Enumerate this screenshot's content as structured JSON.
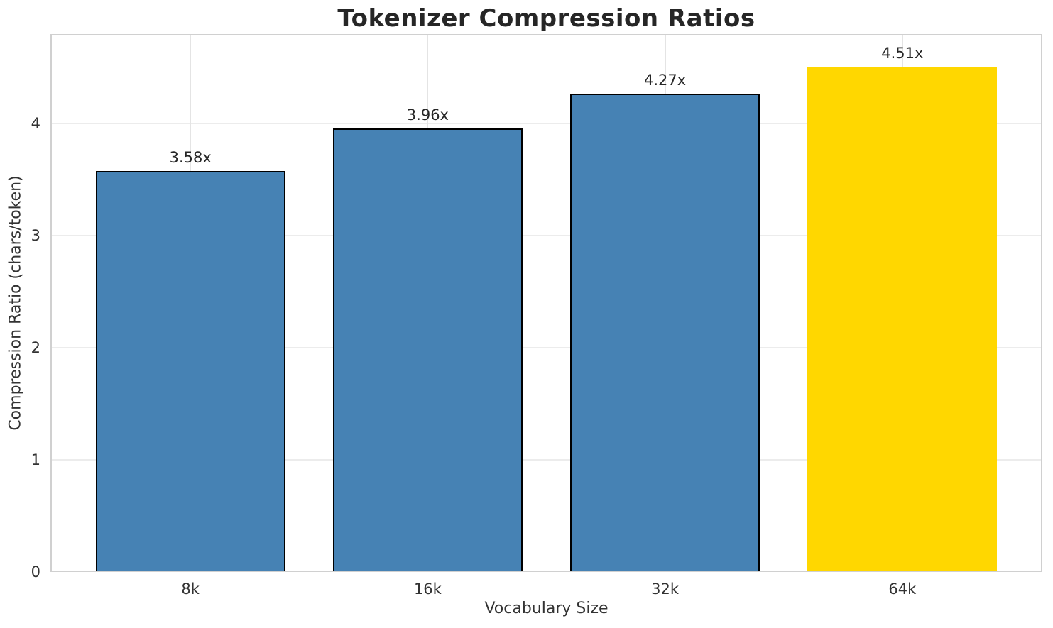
{
  "chart_data": {
    "type": "bar",
    "title": "Tokenizer Compression Ratios",
    "xlabel": "Vocabulary Size",
    "ylabel": "Compression Ratio (chars/token)",
    "categories": [
      "8k",
      "16k",
      "32k",
      "64k"
    ],
    "values": [
      3.58,
      3.96,
      4.27,
      4.51
    ],
    "bar_labels": [
      "3.58x",
      "3.96x",
      "4.27x",
      "4.51x"
    ],
    "ylim": [
      0,
      4.8
    ],
    "yticks": [
      0,
      1,
      2,
      3,
      4
    ],
    "grid": "both",
    "legend_position": "none",
    "highlight_index": 3,
    "colors": {
      "bar": "#4682b4",
      "highlight": "#ffd700",
      "bar_edge": "#000000",
      "title_text": "#262626",
      "tick_text": "#333333",
      "grid_line": "#ececec",
      "spine": "#d0d0d0",
      "background": "#ffffff"
    }
  }
}
